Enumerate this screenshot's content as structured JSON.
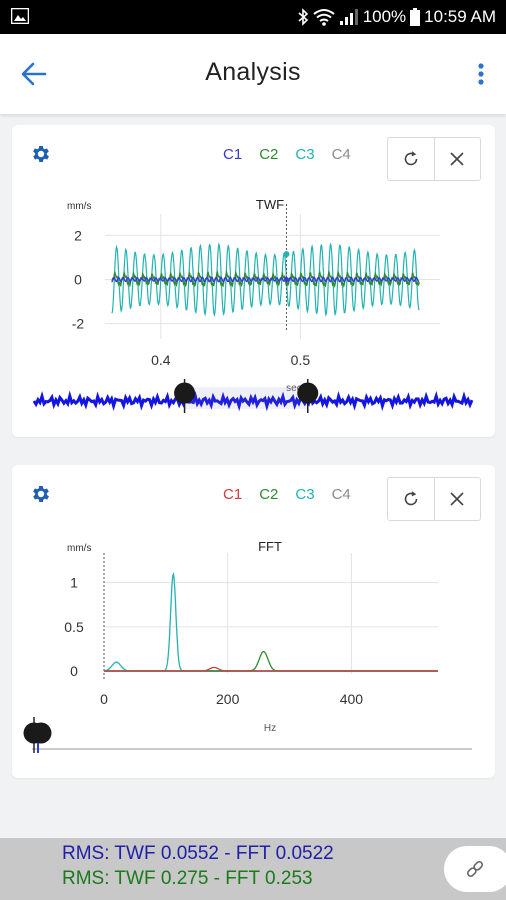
{
  "status_bar": {
    "battery": "100%",
    "time": "10:59 AM"
  },
  "app_bar": {
    "title": "Analysis"
  },
  "twf_card": {
    "channels": [
      {
        "label": "C1",
        "color": "#3a3ad6"
      },
      {
        "label": "C2",
        "color": "#2e8b2e"
      },
      {
        "label": "C3",
        "color": "#22b3b3"
      },
      {
        "label": "C4",
        "color": "#8c8c8c"
      }
    ],
    "chart_data": {
      "type": "line",
      "title": "TWF",
      "ylabel": "mm/s",
      "xlabel": "sec",
      "xlim": [
        0.36,
        0.6
      ],
      "ylim": [
        -2.6,
        2.6
      ],
      "xticks": [
        "0.4",
        "0.5"
      ],
      "yticks": [
        "2",
        "0",
        "-2"
      ],
      "cursor_x": 0.49,
      "series": [
        {
          "name": "C3",
          "color": "#22b3b3",
          "amplitude": 1.6,
          "cycles_per_sec": 150
        },
        {
          "name": "C2",
          "color": "#2e8b2e",
          "amplitude": 0.25,
          "cycles_per_sec": 150
        },
        {
          "name": "C1",
          "color": "#3a3ad6",
          "amplitude": 0.1,
          "cycles_per_sec": 300
        }
      ],
      "range_selector": {
        "start": 0.4,
        "end": 0.49
      }
    }
  },
  "fft_card": {
    "channels": [
      {
        "label": "C1",
        "color": "#d43a3a"
      },
      {
        "label": "C2",
        "color": "#2e8b2e"
      },
      {
        "label": "C3",
        "color": "#22b3b3"
      },
      {
        "label": "C4",
        "color": "#8c8c8c"
      }
    ],
    "chart_data": {
      "type": "line",
      "title": "FFT",
      "ylabel": "mm/s",
      "xlabel": "Hz",
      "xlim": [
        0,
        540
      ],
      "ylim": [
        0,
        1.2
      ],
      "xticks": [
        "0",
        "200",
        "400"
      ],
      "yticks": [
        "1",
        "0.5",
        "0"
      ],
      "series": [
        {
          "name": "C3",
          "color": "#22b3b3",
          "peaks": [
            {
              "x": 20,
              "y": 0.1
            },
            {
              "x": 112,
              "y": 1.1
            }
          ]
        },
        {
          "name": "C2",
          "color": "#2e8b2e",
          "peaks": [
            {
              "x": 258,
              "y": 0.22
            }
          ]
        },
        {
          "name": "C1",
          "color": "#d43a3a",
          "peaks": [
            {
              "x": 178,
              "y": 0.04
            }
          ]
        }
      ]
    }
  },
  "bottom": {
    "rms_line_1": "RMS: TWF 0.0552 - FFT 0.0522",
    "rms_line_2": "RMS: TWF 0.275 - FFT 0.253"
  }
}
